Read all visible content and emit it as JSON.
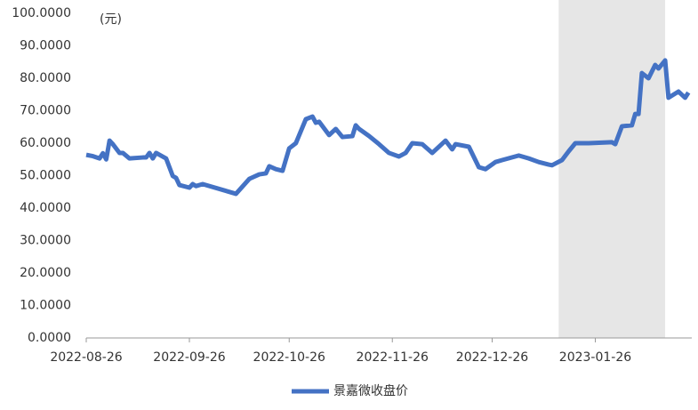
{
  "chart_data": {
    "type": "line",
    "unit_label": "(元)",
    "x": [
      "2022-08-26",
      "2022-08-28",
      "2022-08-30",
      "2022-08-31",
      "2022-09-01",
      "2022-09-02",
      "2022-09-03",
      "2022-09-05",
      "2022-09-06",
      "2022-09-08",
      "2022-09-12",
      "2022-09-13",
      "2022-09-14",
      "2022-09-15",
      "2022-09-16",
      "2022-09-19",
      "2022-09-21",
      "2022-09-22",
      "2022-09-23",
      "2022-09-26",
      "2022-09-27",
      "2022-09-28",
      "2022-09-30",
      "2022-10-10",
      "2022-10-14",
      "2022-10-17",
      "2022-10-19",
      "2022-10-20",
      "2022-10-22",
      "2022-10-24",
      "2022-10-26",
      "2022-10-28",
      "2022-10-31",
      "2022-11-02",
      "2022-11-03",
      "2022-11-04",
      "2022-11-07",
      "2022-11-09",
      "2022-11-11",
      "2022-11-14",
      "2022-11-15",
      "2022-11-16",
      "2022-11-19",
      "2022-11-22",
      "2022-11-25",
      "2022-11-28",
      "2022-11-30",
      "2022-12-02",
      "2022-12-05",
      "2022-12-08",
      "2022-12-12",
      "2022-12-14",
      "2022-12-15",
      "2022-12-19",
      "2022-12-22",
      "2022-12-24",
      "2022-12-27",
      "2022-12-29",
      "2023-01-03",
      "2023-01-06",
      "2023-01-09",
      "2023-01-12",
      "2023-01-13",
      "2023-01-16",
      "2023-01-18",
      "2023-01-20",
      "2023-01-24",
      "2023-01-31",
      "2023-02-01",
      "2023-02-03",
      "2023-02-06",
      "2023-02-07",
      "2023-02-08",
      "2023-02-09",
      "2023-02-11",
      "2023-02-13",
      "2023-02-14",
      "2023-02-16",
      "2023-02-17",
      "2023-02-20",
      "2023-02-22",
      "2023-02-23"
    ],
    "series": [
      {
        "name": "景嘉微收盘价",
        "color": "#4472c4",
        "values": [
          56.4,
          56,
          55.3,
          56.9,
          55,
          60.8,
          59.7,
          57,
          57,
          55.3,
          55.6,
          55.6,
          57,
          55.3,
          57,
          55.3,
          49.9,
          49.3,
          47.1,
          46.3,
          47.4,
          46.8,
          47.4,
          44.4,
          49,
          50.4,
          50.7,
          52.9,
          52,
          51.5,
          58.4,
          60,
          67.4,
          68.2,
          66.3,
          66.6,
          62.5,
          64.4,
          61.9,
          62.2,
          65.5,
          64.4,
          62.2,
          59.7,
          57,
          55.9,
          57,
          60,
          59.7,
          57,
          60.8,
          58.1,
          59.7,
          58.9,
          52.6,
          52,
          54.2,
          54.8,
          56.2,
          55.3,
          54.2,
          53.4,
          53.2,
          54.8,
          57.5,
          60,
          60,
          60.3,
          59.7,
          65.2,
          65.5,
          69,
          69,
          81.6,
          80,
          84.1,
          83,
          85.5,
          74,
          75.9,
          74,
          75.6
        ]
      }
    ],
    "xlim": [
      "2022-08-26",
      "2023-02-24"
    ],
    "xticks": [
      "2022-08-26",
      "2022-09-26",
      "2022-10-26",
      "2022-11-26",
      "2022-12-26",
      "2023-01-26"
    ],
    "ylim": [
      0,
      100
    ],
    "yticks": [
      {
        "value": 0,
        "label": "0.0000"
      },
      {
        "value": 10,
        "label": "10.0000"
      },
      {
        "value": 20,
        "label": "20.0000"
      },
      {
        "value": 30,
        "label": "30.0000"
      },
      {
        "value": 40,
        "label": "40.0000"
      },
      {
        "value": 50,
        "label": "50.0000"
      },
      {
        "value": 60,
        "label": "60.0000"
      },
      {
        "value": 70,
        "label": "70.0000"
      },
      {
        "value": 80,
        "label": "80.0000"
      },
      {
        "value": 90,
        "label": "90.0000"
      },
      {
        "value": 100,
        "label": "100.0000"
      }
    ],
    "shaded_range": [
      "2023-01-15",
      "2023-02-16"
    ],
    "shade_color": "#e6e6e6",
    "legend": "bottom"
  }
}
